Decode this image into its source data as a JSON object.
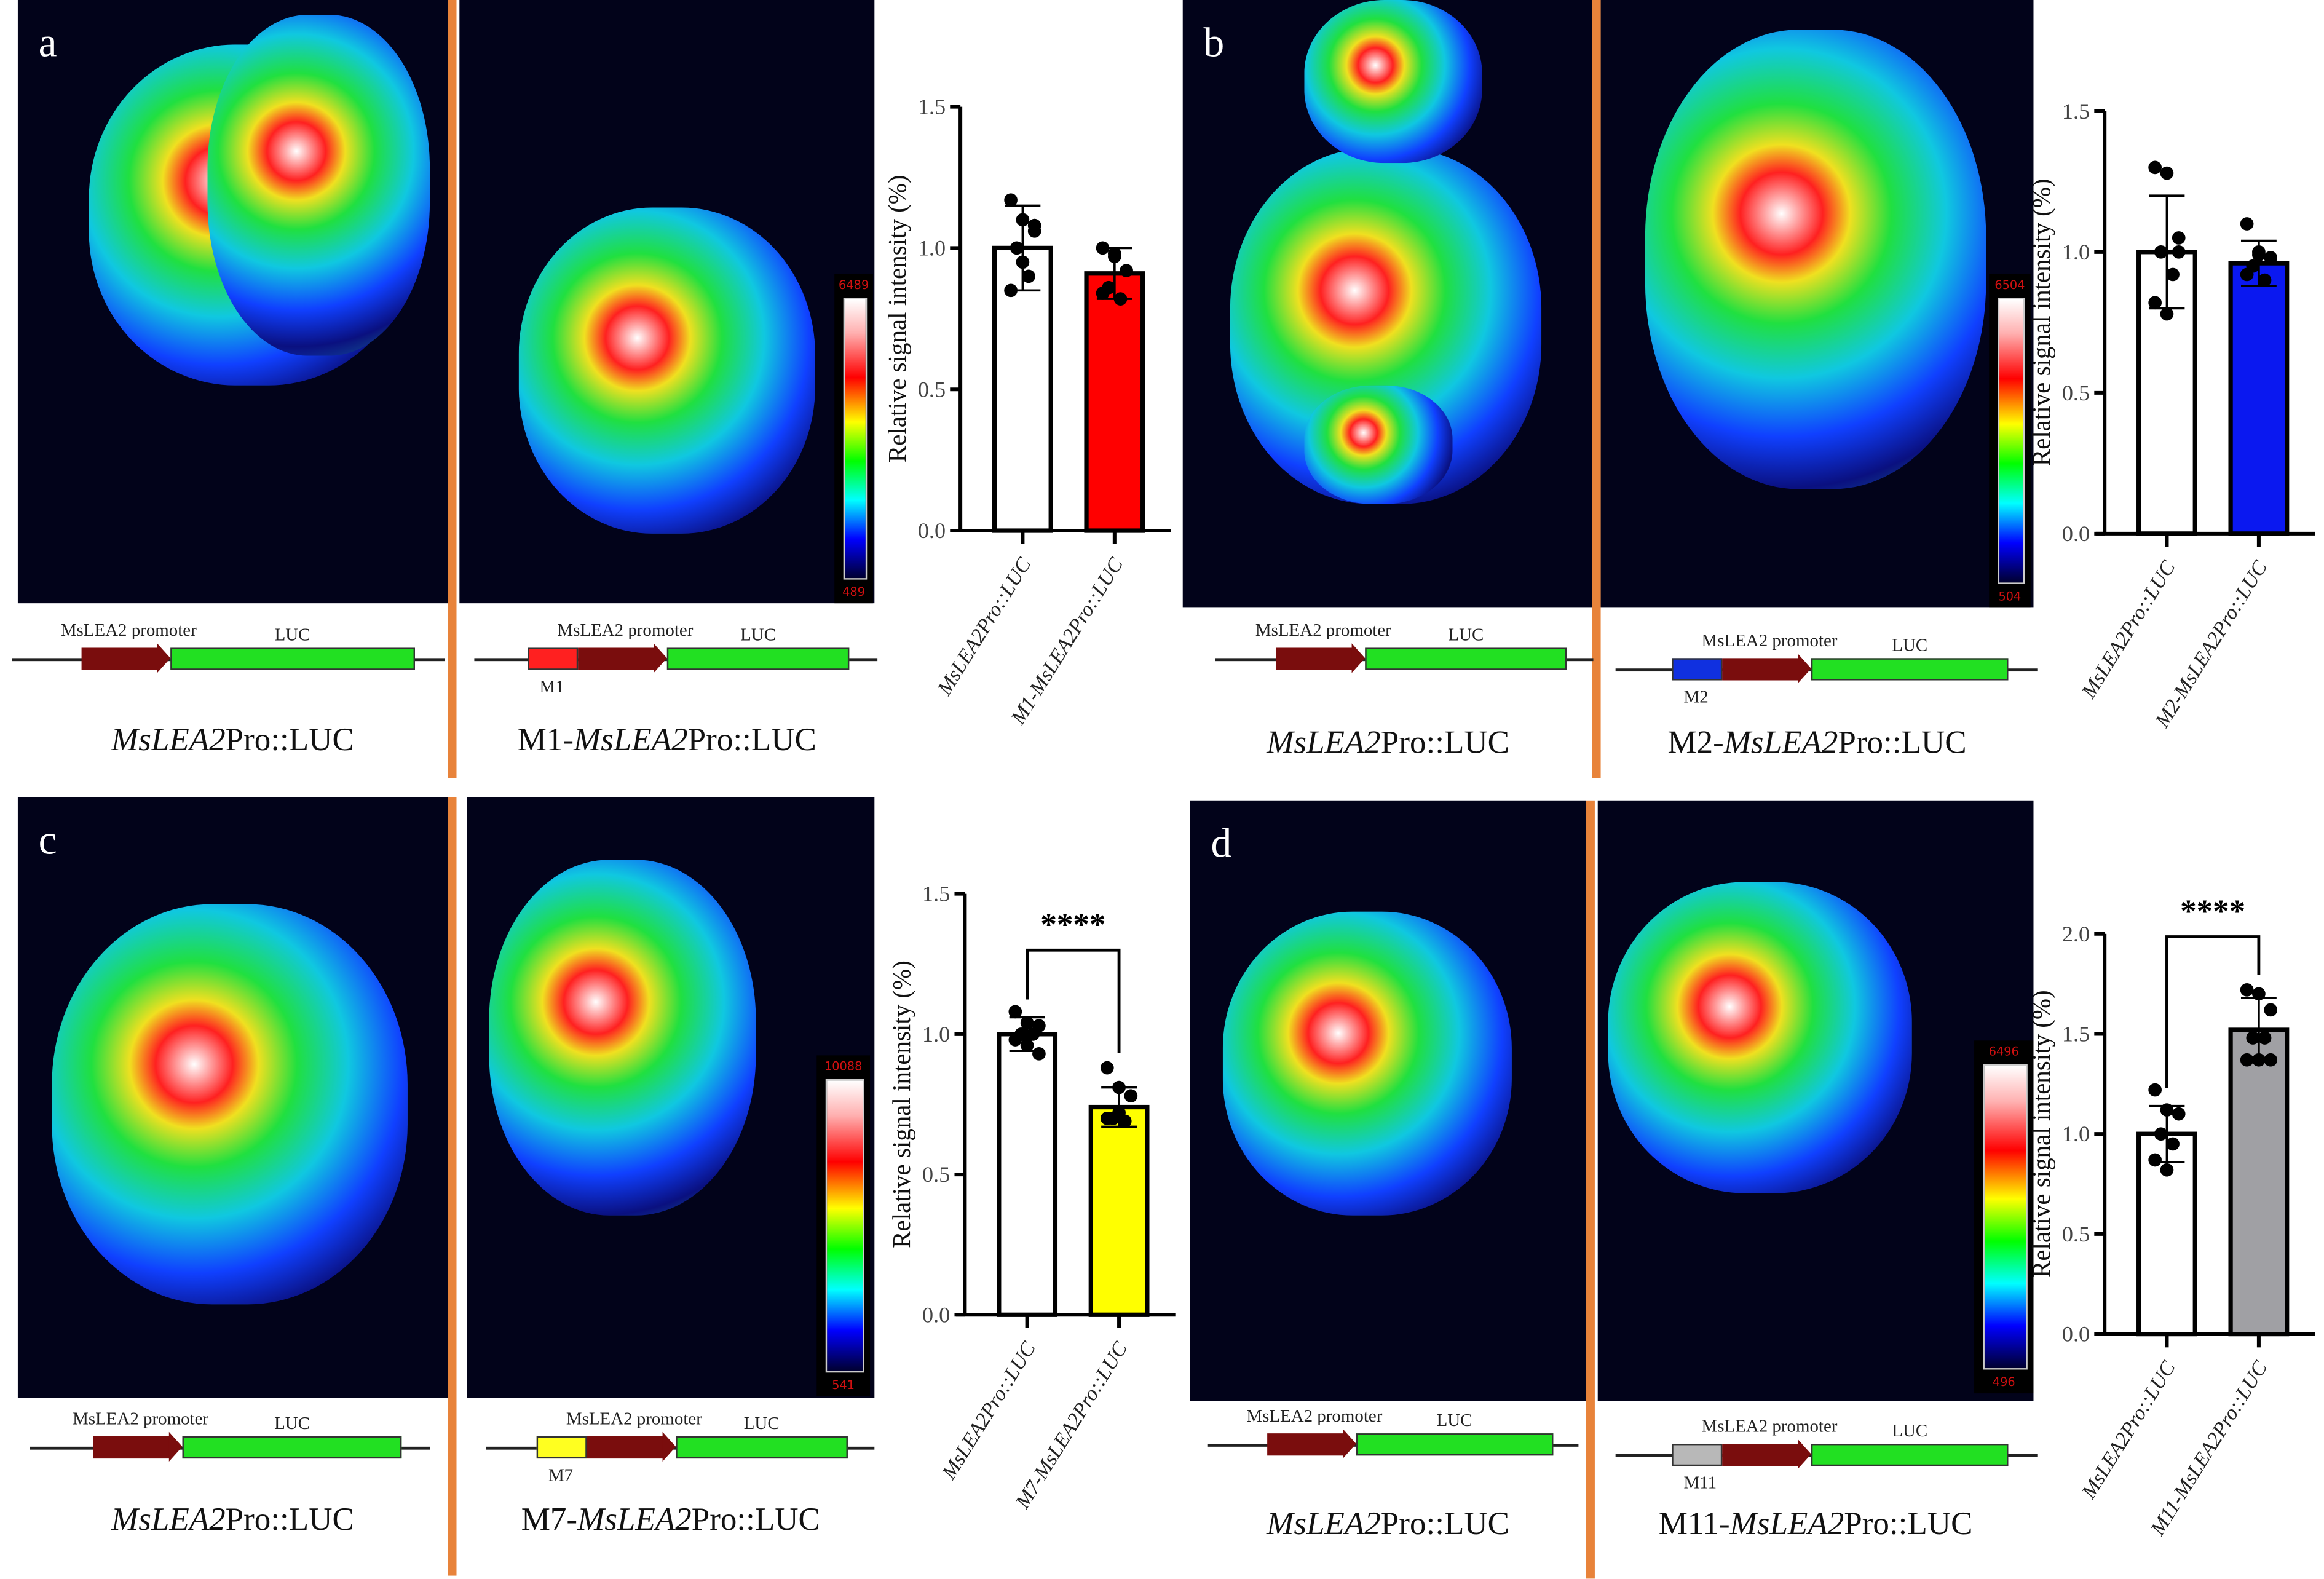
{
  "panels": [
    {
      "letter": "a",
      "colorbar": {
        "max": "6489",
        "min": "489"
      },
      "constructs": [
        {
          "promoter_label": "MsLEA2 promoter",
          "luc_label": "LUC",
          "mutant_label": "",
          "mutant_color": ""
        },
        {
          "promoter_label": "MsLEA2 promoter",
          "luc_label": "LUC",
          "mutant_label": "M1",
          "mutant_color": "#ff2020"
        }
      ],
      "captions": [
        {
          "prefix": "",
          "italic": "MsLEA2",
          "suffix": "Pro::LUC"
        },
        {
          "prefix": "M1-",
          "italic": "MsLEA2",
          "suffix": "Pro::LUC"
        }
      ]
    },
    {
      "letter": "b",
      "colorbar": {
        "max": "6504",
        "min": "504"
      },
      "constructs": [
        {
          "promoter_label": "MsLEA2 promoter",
          "luc_label": "LUC",
          "mutant_label": "",
          "mutant_color": ""
        },
        {
          "promoter_label": "MsLEA2 promoter",
          "luc_label": "LUC",
          "mutant_label": "M2",
          "mutant_color": "#1030e0"
        }
      ],
      "captions": [
        {
          "prefix": "",
          "italic": "MsLEA2",
          "suffix": "Pro::LUC"
        },
        {
          "prefix": "M2-",
          "italic": "MsLEA2",
          "suffix": "Pro::LUC"
        }
      ]
    },
    {
      "letter": "c",
      "colorbar": {
        "max": "10088",
        "min": "541"
      },
      "constructs": [
        {
          "promoter_label": "MsLEA2 promoter",
          "luc_label": "LUC",
          "mutant_label": "",
          "mutant_color": ""
        },
        {
          "promoter_label": "MsLEA2 promoter",
          "luc_label": "LUC",
          "mutant_label": "M7",
          "mutant_color": "#ffff20"
        }
      ],
      "captions": [
        {
          "prefix": "",
          "italic": "MsLEA2",
          "suffix": "Pro::LUC"
        },
        {
          "prefix": "M7-",
          "italic": "MsLEA2",
          "suffix": "Pro::LUC"
        }
      ]
    },
    {
      "letter": "d",
      "colorbar": {
        "max": "6496",
        "min": "496"
      },
      "constructs": [
        {
          "promoter_label": "MsLEA2 promoter",
          "luc_label": "LUC",
          "mutant_label": "",
          "mutant_color": ""
        },
        {
          "promoter_label": "MsLEA2 promoter",
          "luc_label": "LUC",
          "mutant_label": "M11",
          "mutant_color": "#b8b8b8"
        }
      ],
      "captions": [
        {
          "prefix": "",
          "italic": "MsLEA2",
          "suffix": "Pro::LUC"
        },
        {
          "prefix": "M11-",
          "italic": "MsLEA2",
          "suffix": "Pro::LUC"
        }
      ]
    }
  ],
  "chart_data": [
    {
      "type": "bar",
      "panel": "a",
      "ylabel": "Relative signal intensity (%)",
      "xlabel": "",
      "ylim": [
        0,
        1.5
      ],
      "yticks": [
        "0.0",
        "0.5",
        "1.0",
        "1.5"
      ],
      "categories": [
        "MsLEA2Pro::LUC",
        "M1-MsLEA2Pro::LUC"
      ],
      "values": [
        1.0,
        0.91
      ],
      "errors": [
        0.15,
        0.09
      ],
      "colors": [
        "#ffffff",
        "#ff0000"
      ],
      "points": [
        [
          1.17,
          1.1,
          1.06,
          1.0,
          0.9,
          0.85,
          0.95,
          1.08
        ],
        [
          1.0,
          0.98,
          0.92,
          0.86,
          0.82,
          0.84,
          0.97
        ]
      ],
      "significance": ""
    },
    {
      "type": "bar",
      "panel": "b",
      "ylabel": "Relative signal intensity (%)",
      "xlabel": "",
      "ylim": [
        0,
        1.5
      ],
      "yticks": [
        "0.0",
        "0.5",
        "1.0",
        "1.5"
      ],
      "categories": [
        "MsLEA2Pro::LUC",
        "M2-MsLEA2Pro::LUC"
      ],
      "values": [
        1.0,
        0.96
      ],
      "errors": [
        0.2,
        0.08
      ],
      "colors": [
        "#ffffff",
        "#0a18f0"
      ],
      "points": [
        [
          1.3,
          1.28,
          1.05,
          1.0,
          0.92,
          0.82,
          0.78,
          1.0
        ],
        [
          1.1,
          1.0,
          0.98,
          0.95,
          0.9,
          0.92,
          0.99
        ]
      ],
      "significance": ""
    },
    {
      "type": "bar",
      "panel": "c",
      "ylabel": "Relative signal intensity (%)",
      "xlabel": "",
      "ylim": [
        0,
        1.5
      ],
      "yticks": [
        "0.0",
        "0.5",
        "1.0",
        "1.5"
      ],
      "categories": [
        "MsLEA2Pro::LUC",
        "M7-MsLEA2Pro::LUC"
      ],
      "values": [
        1.0,
        0.74
      ],
      "errors": [
        0.06,
        0.07
      ],
      "colors": [
        "#ffffff",
        "#ffff00"
      ],
      "points": [
        [
          1.08,
          1.04,
          1.03,
          1.0,
          1.0,
          0.98,
          0.96,
          0.93
        ],
        [
          0.88,
          0.81,
          0.78,
          0.7,
          0.69,
          0.7,
          0.72
        ]
      ],
      "significance": "****"
    },
    {
      "type": "bar",
      "panel": "d",
      "ylabel": "Relative signal intensity (%)",
      "xlabel": "",
      "ylim": [
        0,
        2.0
      ],
      "yticks": [
        "0.0",
        "0.5",
        "1.0",
        "1.5",
        "2.0"
      ],
      "categories": [
        "MsLEA2Pro::LUC",
        "M11-MsLEA2Pro::LUC"
      ],
      "values": [
        1.0,
        1.52
      ],
      "errors": [
        0.14,
        0.16
      ],
      "colors": [
        "#ffffff",
        "#a0a0a4"
      ],
      "points": [
        [
          1.22,
          1.12,
          1.1,
          1.0,
          0.95,
          0.87,
          0.82
        ],
        [
          1.72,
          1.7,
          1.62,
          1.48,
          1.48,
          1.37,
          1.37,
          1.37
        ]
      ],
      "significance": "****"
    }
  ]
}
